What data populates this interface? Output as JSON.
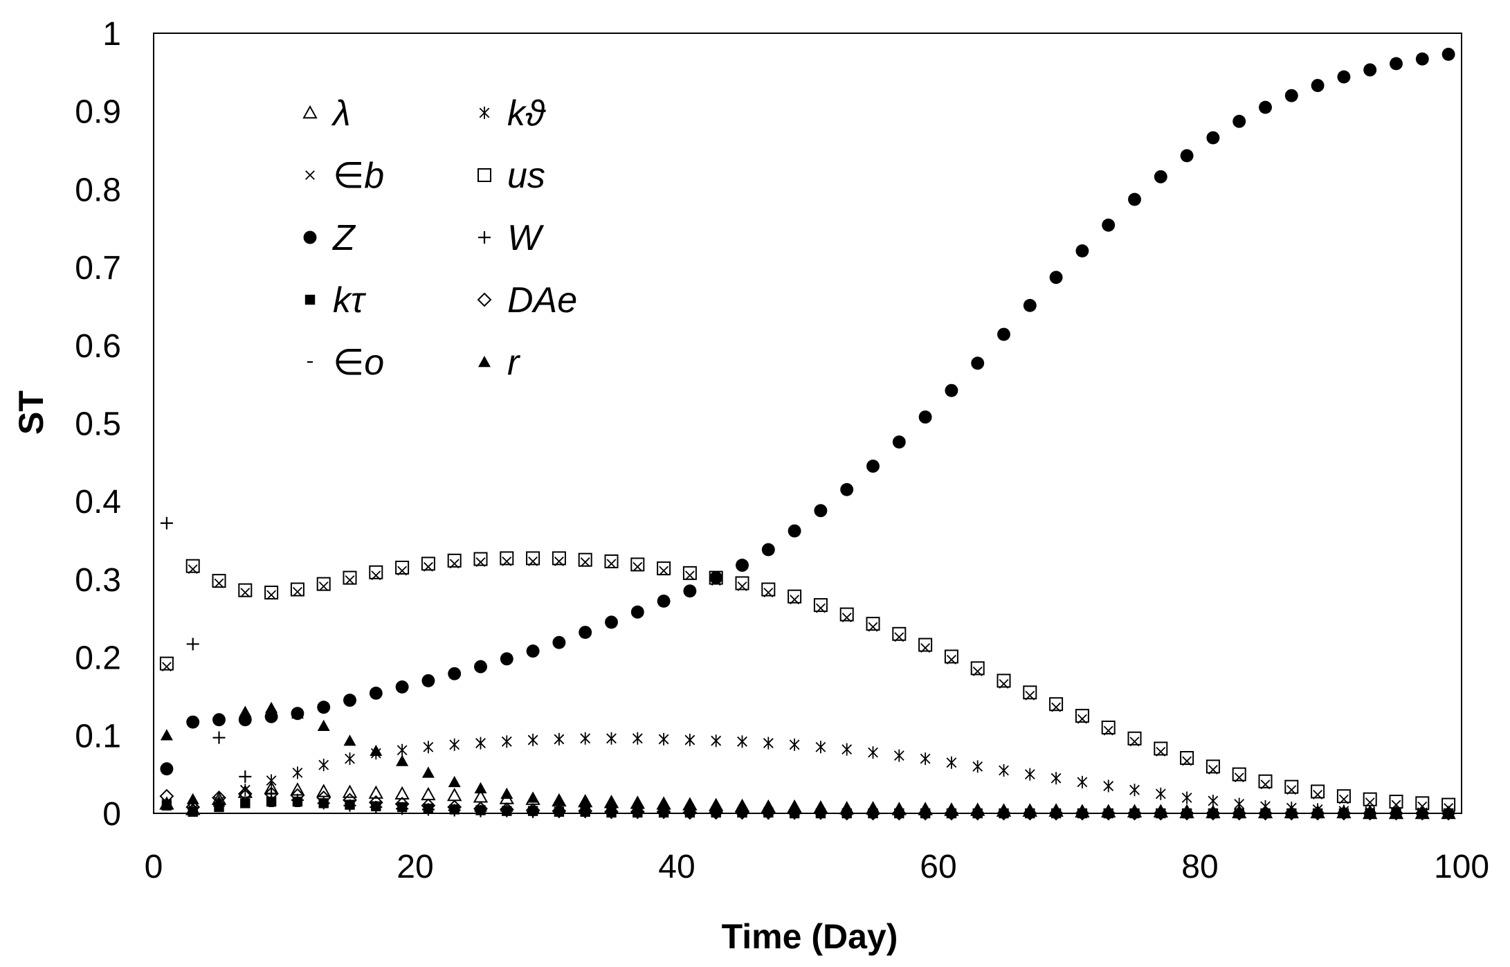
{
  "chart_data": {
    "type": "scatter",
    "xlabel": "Time (Day)",
    "ylabel": "ST",
    "xlim": [
      0,
      100
    ],
    "ylim": [
      0,
      1
    ],
    "x_ticks": [
      "0",
      "20",
      "40",
      "60",
      "80",
      "100"
    ],
    "y_ticks": [
      "0",
      "0.1",
      "0.2",
      "0.3",
      "0.4",
      "0.5",
      "0.6",
      "0.7",
      "0.8",
      "0.9",
      "1"
    ],
    "grid": false,
    "legend_position": "top-left",
    "series": [
      {
        "name": "λ",
        "marker": "triangle-open",
        "x": [
          1,
          3,
          5,
          7,
          9,
          11,
          13,
          15,
          17,
          19,
          21,
          23,
          25,
          27,
          29,
          31,
          33,
          35,
          37,
          39,
          41,
          43,
          45,
          47,
          49,
          51,
          53,
          55,
          57,
          59,
          61,
          63,
          65,
          67,
          69,
          71,
          73,
          75,
          77,
          79,
          81,
          83,
          85,
          87,
          89,
          91,
          93,
          95,
          97,
          99
        ],
        "y": [
          0.012,
          0.005,
          0.018,
          0.027,
          0.032,
          0.03,
          0.028,
          0.027,
          0.026,
          0.025,
          0.024,
          0.023,
          0.021,
          0.019,
          0.018,
          0.016,
          0.015,
          0.014,
          0.013,
          0.012,
          0.011,
          0.01,
          0.009,
          0.008,
          0.008,
          0.007,
          0.006,
          0.006,
          0.005,
          0.005,
          0.004,
          0.004,
          0.003,
          0.003,
          0.003,
          0.002,
          0.002,
          0.002,
          0.002,
          0.001,
          0.001,
          0.001,
          0.001,
          0.001,
          0.001,
          0.001,
          0.0,
          0.0,
          0.0,
          0.0
        ]
      },
      {
        "name": "kϑ",
        "marker": "asterisk",
        "x": [
          1,
          3,
          5,
          7,
          9,
          11,
          13,
          15,
          17,
          19,
          21,
          23,
          25,
          27,
          29,
          31,
          33,
          35,
          37,
          39,
          41,
          43,
          45,
          47,
          49,
          51,
          53,
          55,
          57,
          59,
          61,
          63,
          65,
          67,
          69,
          71,
          73,
          75,
          77,
          79,
          81,
          83,
          85,
          87,
          89,
          91,
          93,
          95,
          97,
          99
        ],
        "y": [
          0.012,
          0.005,
          0.015,
          0.03,
          0.042,
          0.052,
          0.062,
          0.07,
          0.077,
          0.081,
          0.085,
          0.088,
          0.09,
          0.092,
          0.094,
          0.095,
          0.096,
          0.096,
          0.096,
          0.095,
          0.094,
          0.093,
          0.092,
          0.09,
          0.088,
          0.085,
          0.082,
          0.078,
          0.074,
          0.07,
          0.065,
          0.06,
          0.055,
          0.05,
          0.045,
          0.04,
          0.035,
          0.03,
          0.025,
          0.02,
          0.016,
          0.012,
          0.009,
          0.007,
          0.005,
          0.003,
          0.002,
          0.001,
          0.001,
          0.0
        ]
      },
      {
        "name": "∈b",
        "marker": "x",
        "x": [
          1,
          3,
          5,
          7,
          9,
          11,
          13,
          15,
          17,
          19,
          21,
          23,
          25,
          27,
          29,
          31,
          33,
          35,
          37,
          39,
          41,
          43,
          45,
          47,
          49,
          51,
          53,
          55,
          57,
          59,
          61,
          63,
          65,
          67,
          69,
          71,
          73,
          75,
          77,
          79,
          81,
          83,
          85,
          87,
          89,
          91,
          93,
          95,
          97,
          99
        ],
        "y": [
          0.188,
          0.313,
          0.295,
          0.283,
          0.28,
          0.284,
          0.291,
          0.299,
          0.305,
          0.311,
          0.316,
          0.32,
          0.322,
          0.323,
          0.323,
          0.323,
          0.322,
          0.32,
          0.316,
          0.311,
          0.305,
          0.298,
          0.291,
          0.283,
          0.274,
          0.263,
          0.251,
          0.239,
          0.226,
          0.212,
          0.197,
          0.182,
          0.166,
          0.151,
          0.136,
          0.121,
          0.106,
          0.092,
          0.079,
          0.067,
          0.056,
          0.046,
          0.037,
          0.03,
          0.024,
          0.018,
          0.014,
          0.011,
          0.009,
          0.007
        ]
      },
      {
        "name": "us",
        "marker": "square-open",
        "x": [
          1,
          3,
          5,
          7,
          9,
          11,
          13,
          15,
          17,
          19,
          21,
          23,
          25,
          27,
          29,
          31,
          33,
          35,
          37,
          39,
          41,
          43,
          45,
          47,
          49,
          51,
          53,
          55,
          57,
          59,
          61,
          63,
          65,
          67,
          69,
          71,
          73,
          75,
          77,
          79,
          81,
          83,
          85,
          87,
          89,
          91,
          93,
          95,
          97,
          99
        ],
        "y": [
          0.192,
          0.317,
          0.298,
          0.286,
          0.283,
          0.287,
          0.294,
          0.302,
          0.309,
          0.315,
          0.32,
          0.324,
          0.326,
          0.327,
          0.327,
          0.327,
          0.325,
          0.323,
          0.319,
          0.314,
          0.308,
          0.302,
          0.295,
          0.287,
          0.278,
          0.267,
          0.255,
          0.243,
          0.23,
          0.216,
          0.201,
          0.186,
          0.17,
          0.155,
          0.14,
          0.125,
          0.11,
          0.096,
          0.083,
          0.071,
          0.06,
          0.05,
          0.041,
          0.034,
          0.028,
          0.022,
          0.018,
          0.015,
          0.013,
          0.011
        ]
      },
      {
        "name": "Z",
        "marker": "circle-filled",
        "x": [
          1,
          3,
          5,
          7,
          9,
          11,
          13,
          15,
          17,
          19,
          21,
          23,
          25,
          27,
          29,
          31,
          33,
          35,
          37,
          39,
          41,
          43,
          45,
          47,
          49,
          51,
          53,
          55,
          57,
          59,
          61,
          63,
          65,
          67,
          69,
          71,
          73,
          75,
          77,
          79,
          81,
          83,
          85,
          87,
          89,
          91,
          93,
          95,
          97,
          99
        ],
        "y": [
          0.057,
          0.117,
          0.12,
          0.12,
          0.124,
          0.128,
          0.136,
          0.145,
          0.154,
          0.162,
          0.17,
          0.179,
          0.188,
          0.198,
          0.208,
          0.219,
          0.232,
          0.245,
          0.258,
          0.272,
          0.285,
          0.302,
          0.318,
          0.338,
          0.362,
          0.388,
          0.415,
          0.445,
          0.476,
          0.508,
          0.542,
          0.577,
          0.614,
          0.651,
          0.687,
          0.721,
          0.754,
          0.787,
          0.816,
          0.843,
          0.866,
          0.887,
          0.905,
          0.92,
          0.933,
          0.944,
          0.953,
          0.961,
          0.967,
          0.973
        ]
      },
      {
        "name": "W",
        "marker": "plus",
        "x": [
          1,
          3,
          5,
          7,
          9,
          11,
          13,
          15,
          17,
          19,
          21,
          23,
          25,
          27,
          29,
          31,
          33,
          35,
          37,
          39,
          41,
          43,
          45,
          47,
          49,
          51,
          53,
          55,
          57,
          59,
          61,
          63,
          65,
          67,
          69,
          71,
          73,
          75,
          77,
          79,
          81,
          83,
          85,
          87,
          89,
          91,
          93,
          95,
          97,
          99
        ],
        "y": [
          0.372,
          0.217,
          0.097,
          0.047,
          0.025,
          0.017,
          0.013,
          0.01,
          0.008,
          0.006,
          0.005,
          0.004,
          0.003,
          0.003,
          0.002,
          0.002,
          0.002,
          0.001,
          0.001,
          0.001,
          0.001,
          0.001,
          0.001,
          0.0,
          0.0,
          0.0,
          0.0,
          0.0,
          0.0,
          0.0,
          0.0,
          0.0,
          0.0,
          0.0,
          0.0,
          0.0,
          0.0,
          0.0,
          0.0,
          0.0,
          0.0,
          0.0,
          0.0,
          0.0,
          0.0,
          0.0,
          0.0,
          0.0,
          0.0,
          0.0
        ]
      },
      {
        "name": "kτ",
        "marker": "square-filled",
        "x": [
          1,
          3,
          5,
          7,
          9,
          11,
          13,
          15,
          17,
          19,
          21,
          23,
          25,
          27,
          29,
          31,
          33,
          35,
          37,
          39,
          41,
          43,
          45,
          47,
          49,
          51,
          53,
          55,
          57,
          59,
          61,
          63,
          65,
          67,
          69,
          71,
          73,
          75,
          77,
          79,
          81,
          83,
          85,
          87,
          89,
          91,
          93,
          95,
          97,
          99
        ],
        "y": [
          0.01,
          0.002,
          0.008,
          0.013,
          0.015,
          0.015,
          0.013,
          0.011,
          0.009,
          0.008,
          0.006,
          0.005,
          0.004,
          0.003,
          0.003,
          0.002,
          0.002,
          0.001,
          0.001,
          0.001,
          0.001,
          0.001,
          0.001,
          0.001,
          0.0,
          0.0,
          0.0,
          0.0,
          0.0,
          0.0,
          0.0,
          0.0,
          0.0,
          0.0,
          0.0,
          0.0,
          0.0,
          0.0,
          0.0,
          0.0,
          0.0,
          0.0,
          0.0,
          0.0,
          0.0,
          0.0,
          0.0,
          0.0,
          0.0,
          0.0
        ]
      },
      {
        "name": "DAe",
        "marker": "diamond-open",
        "x": [
          1,
          3,
          5,
          7,
          9,
          11,
          13,
          15,
          17,
          19,
          21,
          23,
          25,
          27,
          29,
          31,
          33,
          35,
          37,
          39,
          41,
          43,
          45,
          47,
          49,
          51,
          53,
          55,
          57,
          59,
          61,
          63,
          65,
          67,
          69,
          71,
          73,
          75,
          77,
          79,
          81,
          83,
          85,
          87,
          89,
          91,
          93,
          95,
          97,
          99
        ],
        "y": [
          0.022,
          0.008,
          0.02,
          0.025,
          0.025,
          0.023,
          0.02,
          0.017,
          0.014,
          0.012,
          0.01,
          0.008,
          0.006,
          0.005,
          0.004,
          0.003,
          0.003,
          0.002,
          0.002,
          0.002,
          0.001,
          0.001,
          0.001,
          0.001,
          0.001,
          0.001,
          0.0,
          0.0,
          0.0,
          0.0,
          0.0,
          0.0,
          0.0,
          0.0,
          0.0,
          0.0,
          0.0,
          0.0,
          0.0,
          0.0,
          0.0,
          0.0,
          0.0,
          0.0,
          0.0,
          0.0,
          0.0,
          0.0,
          0.0,
          0.0
        ]
      },
      {
        "name": "∈o",
        "marker": "dash",
        "x": [
          1,
          3,
          5,
          7,
          9,
          11,
          13,
          15,
          17,
          19,
          21,
          23,
          25,
          27,
          29,
          31,
          33,
          35,
          37,
          39,
          41,
          43,
          45,
          47,
          49,
          51,
          53,
          55,
          57,
          59,
          61,
          63,
          65,
          67,
          69,
          71,
          73,
          75,
          77,
          79,
          81,
          83,
          85,
          87,
          89,
          91,
          93,
          95,
          97,
          99
        ],
        "y": [
          0.005,
          0.002,
          0.005,
          0.008,
          0.009,
          0.009,
          0.008,
          0.007,
          0.006,
          0.005,
          0.004,
          0.003,
          0.003,
          0.002,
          0.002,
          0.002,
          0.001,
          0.001,
          0.001,
          0.001,
          0.001,
          0.0,
          0.0,
          0.0,
          0.0,
          0.0,
          0.0,
          0.0,
          0.0,
          0.0,
          0.0,
          0.0,
          0.0,
          0.0,
          0.0,
          0.0,
          0.0,
          0.0,
          0.0,
          0.0,
          0.0,
          0.0,
          0.0,
          0.0,
          0.0,
          0.0,
          0.0,
          0.0,
          0.0,
          0.0
        ]
      },
      {
        "name": "r",
        "marker": "triangle-filled",
        "x": [
          1,
          3,
          5,
          7,
          9,
          11,
          13,
          15,
          17,
          19,
          21,
          23,
          25,
          27,
          29,
          31,
          33,
          35,
          37,
          39,
          41,
          43,
          45,
          47,
          49,
          51,
          53,
          55,
          57,
          59,
          61,
          63,
          65,
          67,
          69,
          71,
          73,
          75,
          77,
          79,
          81,
          83,
          85,
          87,
          89,
          91,
          93,
          95,
          97,
          99
        ],
        "y": [
          0.1,
          0.018,
          0.015,
          0.13,
          0.135,
          0.128,
          0.112,
          0.093,
          0.08,
          0.067,
          0.052,
          0.04,
          0.032,
          0.025,
          0.02,
          0.017,
          0.015,
          0.013,
          0.012,
          0.011,
          0.01,
          0.009,
          0.009,
          0.008,
          0.008,
          0.007,
          0.007,
          0.007,
          0.006,
          0.006,
          0.006,
          0.005,
          0.005,
          0.005,
          0.005,
          0.004,
          0.004,
          0.004,
          0.004,
          0.004,
          0.003,
          0.003,
          0.003,
          0.003,
          0.003,
          0.003,
          0.003,
          0.002,
          0.002,
          0.002
        ]
      }
    ]
  }
}
